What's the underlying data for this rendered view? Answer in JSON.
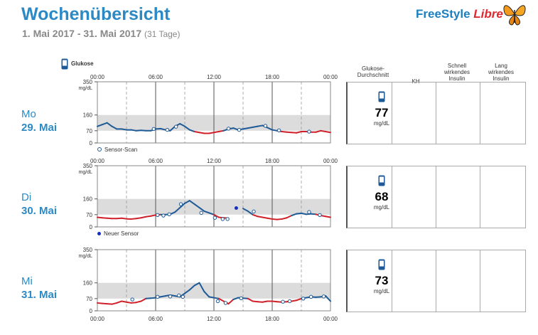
{
  "header": {
    "title": "Wochenübersicht",
    "date_range": "1. Mai 2017 - 31. Mai 2017",
    "days": "(31 Tage)",
    "logo_freestyle": "FreeStyle",
    "logo_libre": "Libre"
  },
  "legend_top": "Glukose",
  "columns": {
    "avg": [
      "Glukose-",
      "Durchschnitt"
    ],
    "kh": "KH",
    "fast": [
      "Schnell",
      "wirkendes",
      "Insulin"
    ],
    "long": [
      "Lang",
      "wirkendes",
      "Insulin"
    ]
  },
  "unit": "mg/dL",
  "colors": {
    "accent": "#2b8ac6",
    "low": "#d0202a",
    "line": "#1e5a96",
    "target": "#dcdcdc"
  },
  "chart_data": [
    {
      "type": "line",
      "weekday": "Mo",
      "date": "29. Mai",
      "legend_note": "Sensor-Scan",
      "x_ticks": [
        "00:00",
        "06:00",
        "12:00",
        "18:00",
        "00:00"
      ],
      "y_ticks": [
        350,
        160,
        70,
        0
      ],
      "ylim": [
        0,
        350
      ],
      "target_range": [
        70,
        160
      ],
      "average": 77,
      "x": [
        0,
        0.5,
        1,
        1.5,
        2,
        2.5,
        3,
        3.5,
        4,
        4.5,
        5,
        5.5,
        6,
        6.5,
        7,
        7.5,
        8,
        8.5,
        9,
        9.5,
        10,
        10.5,
        11,
        11.5,
        12,
        12.5,
        13,
        13.5,
        14,
        14.5,
        15,
        15.5,
        16,
        16.5,
        17,
        17.5,
        18,
        18.5,
        19,
        19.5,
        20,
        20.5,
        21,
        21.5,
        22,
        22.5,
        23,
        23.5,
        24
      ],
      "y": [
        95,
        105,
        115,
        95,
        80,
        80,
        75,
        75,
        70,
        72,
        70,
        70,
        80,
        82,
        75,
        70,
        95,
        110,
        95,
        75,
        65,
        60,
        55,
        55,
        60,
        65,
        70,
        80,
        85,
        75,
        80,
        85,
        90,
        95,
        100,
        88,
        75,
        70,
        65,
        62,
        60,
        58,
        65,
        65,
        62,
        62,
        70,
        65,
        60
      ],
      "scans": [
        [
          5.8,
          80
        ],
        [
          7.2,
          75
        ],
        [
          8.1,
          93
        ],
        [
          13.5,
          82
        ],
        [
          14.6,
          75
        ],
        [
          17.3,
          98
        ],
        [
          18.7,
          72
        ],
        [
          21.8,
          65
        ]
      ],
      "new_sensor": []
    },
    {
      "type": "line",
      "weekday": "Di",
      "date": "30. Mai",
      "legend_note": "Neuer Sensor",
      "x_ticks": [
        "00:00",
        "06:00",
        "12:00",
        "18:00",
        "00:00"
      ],
      "y_ticks": [
        350,
        160,
        70,
        0
      ],
      "ylim": [
        0,
        350
      ],
      "target_range": [
        70,
        160
      ],
      "average": 68,
      "x": [
        0,
        0.5,
        1,
        1.5,
        2,
        2.5,
        3,
        3.5,
        4,
        4.5,
        5,
        5.5,
        6,
        6.5,
        7,
        7.5,
        8,
        8.5,
        9,
        9.5,
        10,
        10.5,
        11,
        11.5,
        12,
        12.5,
        13,
        13.5,
        14,
        14.5,
        15,
        15.5,
        16,
        16.5,
        17,
        17.5,
        18,
        18.5,
        19,
        19.5,
        20,
        20.5,
        21,
        21.5,
        22,
        22.5,
        23,
        23.5,
        24
      ],
      "y": [
        55,
        52,
        50,
        48,
        48,
        50,
        46,
        45,
        48,
        52,
        58,
        62,
        68,
        70,
        70,
        72,
        85,
        110,
        135,
        150,
        130,
        110,
        90,
        80,
        70,
        55,
        52,
        50,
        null,
        null,
        105,
        90,
        70,
        60,
        55,
        50,
        45,
        42,
        45,
        52,
        65,
        75,
        78,
        72,
        75,
        72,
        65,
        60,
        55
      ],
      "scans": [
        [
          6.2,
          68
        ],
        [
          6.8,
          65
        ],
        [
          7.4,
          72
        ],
        [
          8.6,
          130
        ],
        [
          10.7,
          80
        ],
        [
          12.1,
          52
        ],
        [
          12.9,
          45
        ],
        [
          13.4,
          45
        ],
        [
          16.1,
          88
        ],
        [
          21.8,
          85
        ],
        [
          22.9,
          68
        ]
      ],
      "new_sensor": [
        [
          14.3,
          108
        ]
      ]
    },
    {
      "type": "line",
      "weekday": "Mi",
      "date": "31. Mai",
      "legend_note": "",
      "x_ticks": [
        "00:00",
        "06:00",
        "12:00",
        "18:00",
        "00:00"
      ],
      "y_ticks": [
        350,
        160,
        70,
        0
      ],
      "ylim": [
        0,
        350
      ],
      "target_range": [
        70,
        160
      ],
      "average": 73,
      "x": [
        0,
        0.5,
        1,
        1.5,
        2,
        2.5,
        3,
        3.5,
        4,
        4.5,
        5,
        5.5,
        6,
        6.5,
        7,
        7.5,
        8,
        8.5,
        9,
        9.5,
        10,
        10.5,
        11,
        11.5,
        12,
        12.5,
        13,
        13.5,
        14,
        14.5,
        15,
        15.5,
        16,
        16.5,
        17,
        17.5,
        18,
        18.5,
        19,
        19.5,
        20,
        20.5,
        21,
        21.5,
        22,
        22.5,
        23,
        23.5,
        24
      ],
      "y": [
        45,
        42,
        40,
        38,
        45,
        55,
        50,
        45,
        48,
        55,
        70,
        72,
        75,
        80,
        85,
        90,
        85,
        80,
        100,
        120,
        145,
        160,
        110,
        80,
        75,
        70,
        55,
        40,
        65,
        75,
        72,
        70,
        55,
        52,
        50,
        55,
        55,
        52,
        50,
        52,
        55,
        60,
        70,
        75,
        80,
        78,
        80,
        85,
        55
      ],
      "scans": [
        [
          3.6,
          65
        ],
        [
          6.2,
          80
        ],
        [
          7.5,
          82
        ],
        [
          8.4,
          88
        ],
        [
          8.8,
          80
        ],
        [
          12.4,
          55
        ],
        [
          13.2,
          45
        ],
        [
          14.8,
          72
        ],
        [
          19.1,
          52
        ],
        [
          19.8,
          55
        ],
        [
          21.2,
          70
        ],
        [
          22.0,
          80
        ],
        [
          23.3,
          82
        ]
      ],
      "new_sensor": []
    }
  ]
}
